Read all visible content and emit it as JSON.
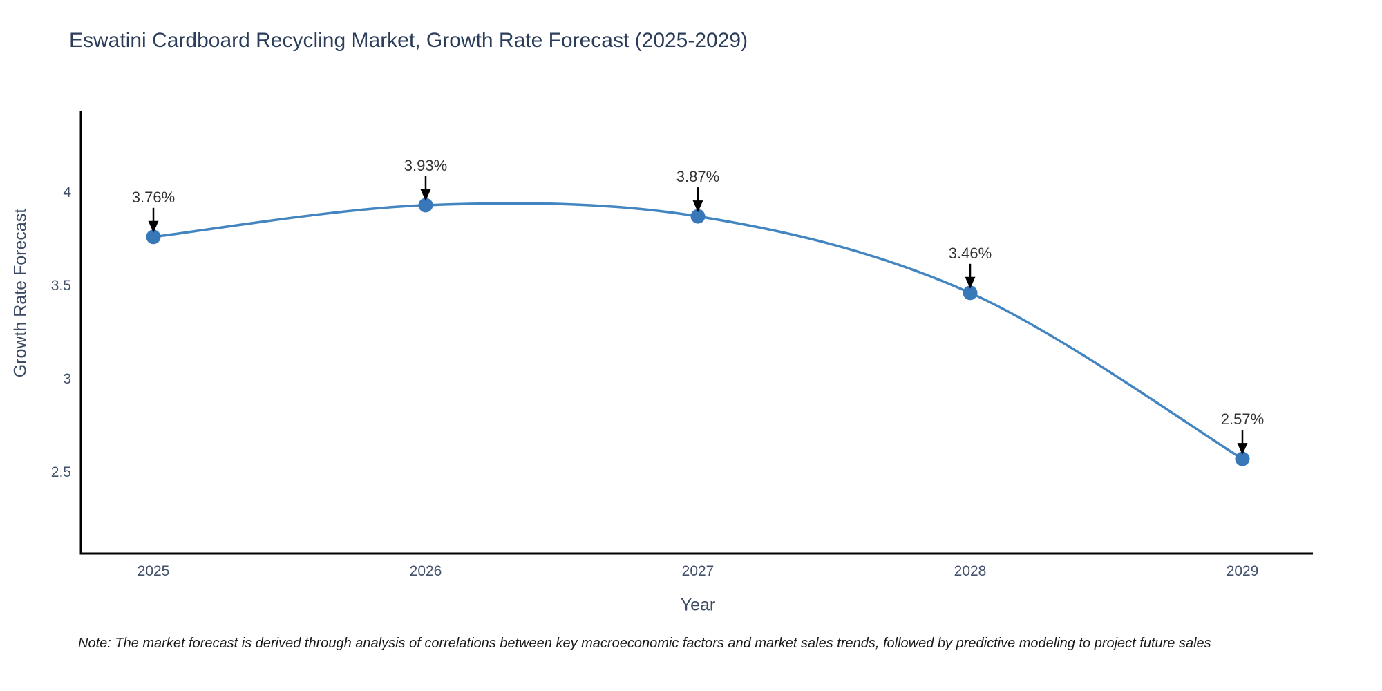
{
  "chart_data": {
    "type": "line",
    "title": "Eswatini Cardboard Recycling Market, Growth Rate Forecast (2025-2029)",
    "xlabel": "Year",
    "ylabel": "Growth Rate Forecast",
    "x": [
      2025,
      2026,
      2027,
      2028,
      2029
    ],
    "x_tick_labels": [
      "2025",
      "2026",
      "2027",
      "2028",
      "2029"
    ],
    "series": [
      {
        "name": "Growth Rate Forecast",
        "values": [
          3.76,
          3.93,
          3.87,
          3.46,
          2.57
        ]
      }
    ],
    "point_labels": [
      "3.76%",
      "3.93%",
      "3.87%",
      "3.46%",
      "2.57%"
    ],
    "y_ticks": [
      2.5,
      3,
      3.5,
      4
    ],
    "y_tick_labels": [
      "2.5",
      "3",
      "3.5",
      "4"
    ],
    "ylim": [
      2.07,
      4.44
    ],
    "line_shape": "spline",
    "grid": false,
    "legend_position": "none",
    "colors": {
      "line": "#4285c0",
      "marker": "#3978b8",
      "axis": "#000000",
      "tick_text": "#42506b",
      "title_text": "#2b3d59",
      "annotation_text": "#333333",
      "arrow": "#000000"
    },
    "note": "Note: The market forecast is derived through analysis of correlations between key macroeconomic factors and market sales trends, followed by predictive modeling to project future sales"
  }
}
